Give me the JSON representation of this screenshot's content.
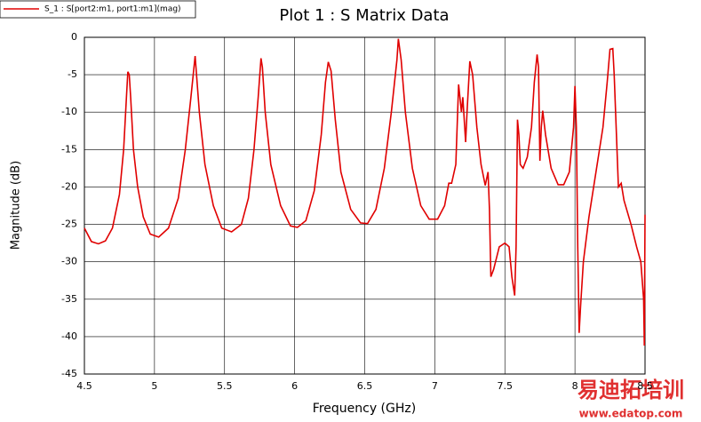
{
  "chart_data": {
    "type": "line",
    "title": "Plot 1 : S Matrix Data",
    "xlabel": "Frequency (GHz)",
    "ylabel": "Magnitude (dB)",
    "annotations": [
      "易迪拓培训",
      "www.edatop.com"
    ],
    "x": [
      4.5,
      4.55,
      4.6,
      4.65,
      4.7,
      4.75,
      4.78,
      4.8,
      4.81,
      4.82,
      4.83,
      4.85,
      4.88,
      4.92,
      4.97,
      5.03,
      5.1,
      5.17,
      5.22,
      5.26,
      5.29,
      5.3,
      5.32,
      5.36,
      5.42,
      5.48,
      5.55,
      5.62,
      5.67,
      5.71,
      5.74,
      5.76,
      5.77,
      5.79,
      5.83,
      5.9,
      5.97,
      6.02,
      6.08,
      6.14,
      6.19,
      6.22,
      6.24,
      6.26,
      6.29,
      6.33,
      6.4,
      6.47,
      6.52,
      6.58,
      6.64,
      6.69,
      6.73,
      6.74,
      6.76,
      6.79,
      6.84,
      6.9,
      6.96,
      7.02,
      7.07,
      7.1,
      7.12,
      7.15,
      7.17,
      7.19,
      7.2,
      7.22,
      7.23,
      7.25,
      7.27,
      7.3,
      7.33,
      7.36,
      7.38,
      7.39,
      7.4,
      7.42,
      7.46,
      7.5,
      7.53,
      7.55,
      7.57,
      7.58,
      7.59,
      7.6,
      7.61,
      7.63,
      7.66,
      7.69,
      7.71,
      7.73,
      7.74,
      7.75,
      7.76,
      7.77,
      7.79,
      7.83,
      7.88,
      7.92,
      7.96,
      7.99,
      8.0,
      8.01,
      8.02,
      8.03,
      8.04,
      8.06,
      8.1,
      8.15,
      8.2,
      8.23,
      8.25,
      8.27,
      8.28,
      8.3,
      8.31,
      8.33,
      8.35,
      8.4,
      8.44,
      8.47,
      8.49,
      8.495,
      8.5
    ],
    "series": [
      {
        "name": "S_1 : S[port2:m1, port1:m1](mag)",
        "color": "#e00000",
        "values": [
          -25.5,
          -27.3,
          -27.6,
          -27.2,
          -25.5,
          -21,
          -15,
          -8,
          -4.6,
          -5,
          -8,
          -15,
          -20,
          -24,
          -26.3,
          -26.7,
          -25.5,
          -21.5,
          -15,
          -8,
          -2.5,
          -5,
          -10,
          -17,
          -22.5,
          -25.5,
          -26,
          -25,
          -21.5,
          -15,
          -8,
          -2.8,
          -4,
          -10,
          -17,
          -22.5,
          -25.2,
          -25.4,
          -24.5,
          -20.5,
          -13,
          -6,
          -3.3,
          -4.5,
          -11,
          -18,
          -23,
          -24.8,
          -24.9,
          -23,
          -17.5,
          -10,
          -3,
          -0.2,
          -3,
          -10,
          -17.5,
          -22.5,
          -24.3,
          -24.3,
          -22.5,
          -19.5,
          -19.5,
          -17,
          -6.3,
          -10,
          -8,
          -14,
          -10,
          -3.2,
          -5,
          -12,
          -17,
          -19.8,
          -18,
          -23,
          -32,
          -31,
          -28,
          -27.5,
          -28,
          -32,
          -34.5,
          -28,
          -11,
          -13,
          -17,
          -17.5,
          -16,
          -12,
          -6,
          -2.3,
          -4,
          -16.5,
          -12,
          -9.8,
          -13,
          -17.5,
          -19.7,
          -19.7,
          -18,
          -12,
          -6.5,
          -12,
          -28,
          -39.5,
          -36,
          -30,
          -24,
          -18,
          -12,
          -6,
          -1.6,
          -1.5,
          -5,
          -15,
          -20,
          -19.5,
          -21.8,
          -25,
          -28,
          -30,
          -35,
          -41.2,
          -23.7
        ]
      }
    ],
    "xlim": [
      4.5,
      8.5
    ],
    "xticks": [
      4.5,
      5,
      5.5,
      6,
      6.5,
      7,
      7.5,
      8,
      8.5
    ],
    "ylim": [
      -45,
      0
    ],
    "yticks": [
      0,
      -5,
      -10,
      -15,
      -20,
      -25,
      -30,
      -35,
      -40,
      -45
    ],
    "grid": true,
    "legend": "top-left"
  }
}
